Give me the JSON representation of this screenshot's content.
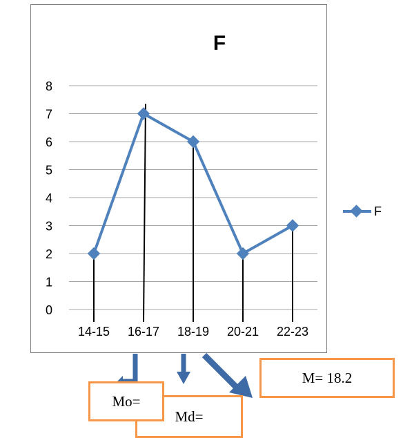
{
  "chart_data": {
    "type": "line",
    "title": "F",
    "categories": [
      "14-15",
      "16-17",
      "18-19",
      "20-21",
      "22-23"
    ],
    "series": [
      {
        "name": "F",
        "values": [
          2,
          7,
          6,
          2,
          3
        ]
      }
    ],
    "ylim": [
      0,
      8
    ],
    "yticks": [
      0,
      1,
      2,
      3,
      4,
      5,
      6,
      7,
      8
    ],
    "grid": true,
    "legend": "right",
    "drop_lines": true,
    "colors": {
      "series": "#4f81bd",
      "grid": "#a6a6a6",
      "box_border": "#f79646",
      "arrow": "#3e6aa6",
      "drop_line": "#000000"
    }
  },
  "annotations": {
    "mode_label": "Mo=",
    "median_label": "Md=",
    "mean_label": "M= 18.2"
  }
}
